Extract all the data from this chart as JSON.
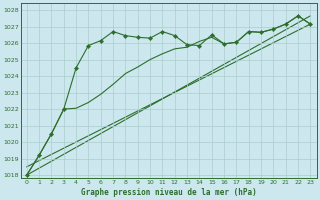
{
  "title": "Graphe pression niveau de la mer (hPa)",
  "bg_color": "#cce8ee",
  "grid_color": "#aacccc",
  "line_color": "#2d6e2d",
  "xlim": [
    -0.5,
    23.5
  ],
  "ylim": [
    1017.8,
    1028.4
  ],
  "yticks": [
    1018,
    1019,
    1020,
    1021,
    1022,
    1023,
    1024,
    1025,
    1026,
    1027,
    1028
  ],
  "xticks": [
    0,
    1,
    2,
    3,
    4,
    5,
    6,
    7,
    8,
    9,
    10,
    11,
    12,
    13,
    14,
    15,
    16,
    17,
    18,
    19,
    20,
    21,
    22,
    23
  ],
  "line1_x": [
    0,
    1,
    2,
    3,
    4,
    5,
    6,
    7,
    8,
    9,
    10,
    11,
    12,
    13,
    14,
    15,
    16,
    17,
    18,
    19,
    20,
    21,
    22,
    23
  ],
  "line1_y": [
    1018.0,
    1019.2,
    1020.5,
    1022.0,
    1024.5,
    1025.85,
    1026.15,
    1026.7,
    1026.45,
    1026.35,
    1026.3,
    1026.7,
    1026.45,
    1025.9,
    1025.85,
    1026.5,
    1025.95,
    1026.05,
    1026.7,
    1026.65,
    1026.85,
    1027.15,
    1027.65,
    1027.15
  ],
  "line2_x": [
    0,
    1,
    2,
    3,
    4,
    5,
    6,
    7,
    8,
    9,
    10,
    11,
    12,
    13,
    14,
    15,
    16,
    17,
    18,
    19,
    20,
    21,
    22,
    23
  ],
  "line2_y": [
    1018.0,
    1019.2,
    1020.5,
    1022.0,
    1022.05,
    1022.4,
    1022.9,
    1023.5,
    1024.15,
    1024.55,
    1025.0,
    1025.35,
    1025.65,
    1025.75,
    1026.1,
    1026.35,
    1025.95,
    1026.05,
    1026.7,
    1026.65,
    1026.85,
    1027.15,
    1027.65,
    1027.15
  ],
  "line3_x": [
    0,
    23
  ],
  "line3_y": [
    1018.5,
    1027.15
  ],
  "line4_x": [
    0,
    23
  ],
  "line4_y": [
    1018.0,
    1027.65
  ]
}
